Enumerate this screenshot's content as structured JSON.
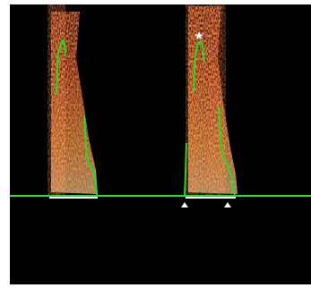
{
  "colors": {
    "background": "#000000",
    "envelope": "#22dd22",
    "baseline": "#ffffff",
    "marker": "#ffffff",
    "spectrogram_hot": "#ffe6b0",
    "spectrogram_mid": "#d2461a",
    "spectrogram_low": "#5a0c06"
  },
  "markers": [
    {
      "icon": "peak-star-marker-icon"
    },
    {
      "icon": "start-triangle-marker-icon"
    },
    {
      "icon": "end-triangle-marker-icon"
    }
  ]
}
